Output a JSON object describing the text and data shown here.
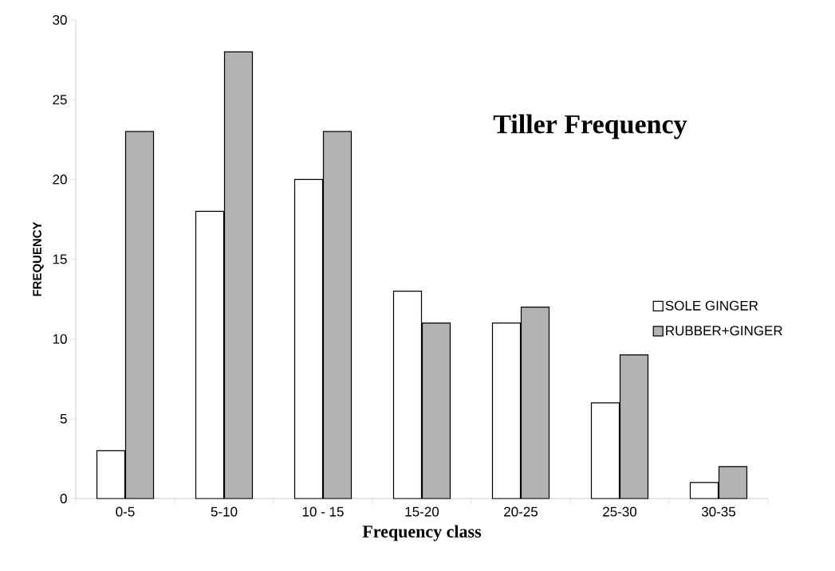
{
  "chart_data": {
    "type": "bar",
    "title": "Tiller Frequency",
    "xlabel": "Frequency class",
    "ylabel": "FREQUENCY",
    "categories": [
      "0-5",
      "5-10",
      "10 - 15",
      "15-20",
      "20-25",
      "25-30",
      "30-35"
    ],
    "series": [
      {
        "name": "SOLE GINGER",
        "color": "#ffffff",
        "values": [
          3,
          18,
          20,
          13,
          11,
          6,
          1
        ]
      },
      {
        "name": "RUBBER+GINGER",
        "color": "#b3b3b3",
        "values": [
          23,
          28,
          23,
          11,
          12,
          9,
          2
        ]
      }
    ],
    "ylim": [
      0,
      30
    ],
    "yticks": [
      0,
      5,
      10,
      15,
      20,
      25,
      30
    ],
    "grid": false,
    "legend": "right"
  }
}
